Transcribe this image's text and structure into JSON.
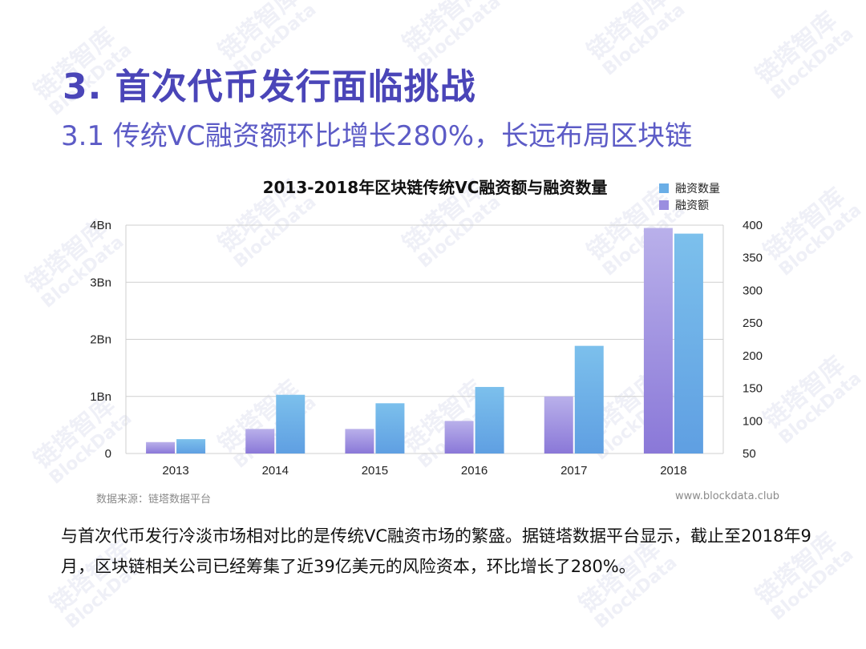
{
  "slide": {
    "title": "3. 首次代币发行面临挑战",
    "subtitle": "3.1 传统VC融资额环比增长280%，长远布局区块链",
    "source": "数据来源：链塔数据平台",
    "website": "www.blockdata.club",
    "paragraph": "与首次代币发行冷淡市场相对比的是传统VC融资市场的繁盛。据链塔数据平台显示，截止至2018年9月，区块链相关公司已经筹集了近39亿美元的风险资本，环比增长了280%。",
    "watermark": {
      "cn": "链塔智库",
      "en": "BlockData"
    }
  },
  "chart_data": {
    "type": "bar",
    "title": "2013-2018年区块链传统VC融资额与融资数量",
    "categories": [
      "2013",
      "2014",
      "2015",
      "2016",
      "2017",
      "2018"
    ],
    "series": [
      {
        "name": "融资额",
        "axis": "left",
        "unit": "Bn",
        "color": "#9b8ee0",
        "values": [
          0.2,
          0.43,
          0.43,
          0.57,
          1.0,
          3.95
        ]
      },
      {
        "name": "融资数量",
        "axis": "right",
        "color": "#6aaee6",
        "values": [
          72,
          140,
          127,
          152,
          215,
          387
        ]
      }
    ],
    "left_axis": {
      "ticks": [
        "0",
        "1Bn",
        "2Bn",
        "3Bn",
        "4Bn"
      ],
      "range": [
        0,
        4
      ]
    },
    "right_axis": {
      "ticks": [
        "50",
        "100",
        "150",
        "200",
        "250",
        "300",
        "350",
        "400"
      ],
      "range": [
        50,
        400
      ]
    },
    "legend": [
      "融资数量",
      "融资额"
    ],
    "legend_placement": "top-right",
    "grid": true
  }
}
